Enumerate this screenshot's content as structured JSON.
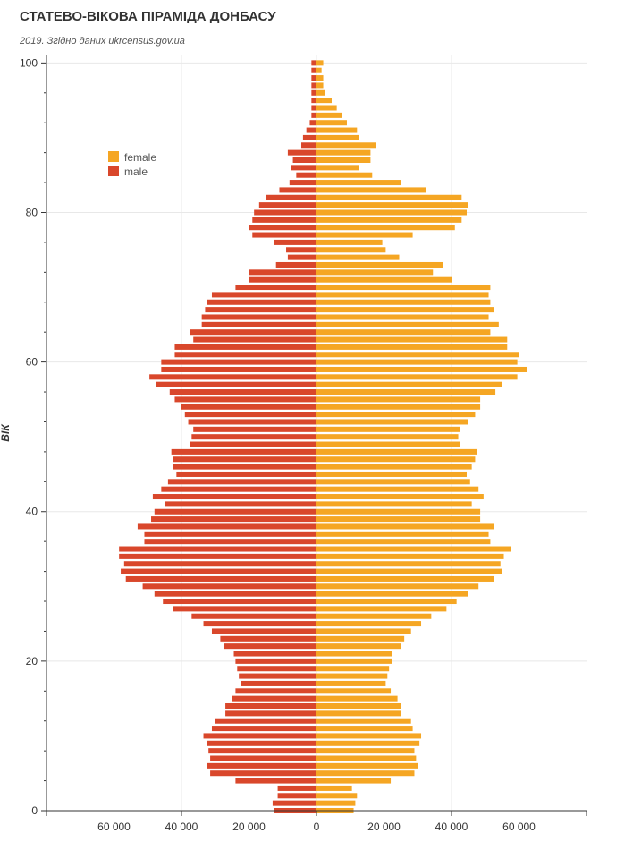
{
  "chart_data": {
    "type": "bar",
    "orientation": "horizontal",
    "title": "СТАТЕВО-ВІКОВА ПІРАМІДА ДОНБАСУ",
    "subtitle": "2019. Згідно даних ukrcensus.gov.ua",
    "ylabel": "ВІК",
    "xlabel": "",
    "xlim": [
      -80000,
      80000
    ],
    "ylim": [
      0,
      101
    ],
    "x_tick_values": [
      -60000,
      -40000,
      -20000,
      0,
      20000,
      40000,
      60000
    ],
    "x_tick_labels": [
      "60 000",
      "40 000",
      "20 000",
      "0",
      "20 000",
      "40 000",
      "60 000"
    ],
    "x_minor_ticks": [
      -80000,
      80000
    ],
    "y_ticks": [
      0,
      20,
      40,
      60,
      80,
      100
    ],
    "grid": true,
    "legend_position": "top-left",
    "colors": {
      "female": "#f5a623",
      "male": "#d9472b",
      "grid": "#e8e8e8",
      "axis": "#333333"
    },
    "ages": [
      0,
      1,
      2,
      3,
      4,
      5,
      6,
      7,
      8,
      9,
      10,
      11,
      12,
      13,
      14,
      15,
      16,
      17,
      18,
      19,
      20,
      21,
      22,
      23,
      24,
      25,
      26,
      27,
      28,
      29,
      30,
      31,
      32,
      33,
      34,
      35,
      36,
      37,
      38,
      39,
      40,
      41,
      42,
      43,
      44,
      45,
      46,
      47,
      48,
      49,
      50,
      51,
      52,
      53,
      54,
      55,
      56,
      57,
      58,
      59,
      60,
      61,
      62,
      63,
      64,
      65,
      66,
      67,
      68,
      69,
      70,
      71,
      72,
      73,
      74,
      75,
      76,
      77,
      78,
      79,
      80,
      81,
      82,
      83,
      84,
      85,
      86,
      87,
      88,
      89,
      90,
      91,
      92,
      93,
      94,
      95,
      96,
      97,
      98,
      99,
      100
    ],
    "series": [
      {
        "name": "female",
        "values": [
          11000,
          11500,
          12000,
          10500,
          22000,
          29000,
          30000,
          29500,
          29000,
          30500,
          31000,
          28500,
          28000,
          25000,
          25000,
          24000,
          22000,
          20500,
          21000,
          21500,
          22500,
          22500,
          25000,
          26000,
          28000,
          31000,
          34000,
          38500,
          41500,
          45000,
          48000,
          52500,
          55000,
          54500,
          55500,
          57500,
          51500,
          51000,
          52500,
          48500,
          48500,
          46000,
          49500,
          48000,
          45500,
          44500,
          46000,
          47000,
          47500,
          42500,
          42000,
          42500,
          45000,
          47000,
          48500,
          48500,
          53000,
          55000,
          59500,
          62500,
          59500,
          60000,
          56500,
          56500,
          51500,
          54000,
          51000,
          52500,
          51500,
          51000,
          51500,
          40000,
          34500,
          37500,
          24500,
          20500,
          19500,
          28500,
          41000,
          43000,
          44500,
          45000,
          43000,
          32500,
          25000,
          16500,
          12500,
          16000,
          16000,
          17500,
          12500,
          12000,
          9000,
          7500,
          6000,
          4500,
          2500,
          2000,
          2000,
          1500,
          2000
        ]
      },
      {
        "name": "male",
        "values": [
          12500,
          13000,
          11500,
          11500,
          24000,
          31500,
          32500,
          31500,
          32000,
          32500,
          33500,
          31000,
          30000,
          27000,
          27000,
          25000,
          24000,
          22500,
          23000,
          23500,
          24000,
          24500,
          27500,
          28500,
          31000,
          33500,
          37000,
          42500,
          45500,
          48000,
          51500,
          56500,
          58000,
          57000,
          58500,
          58500,
          51000,
          51000,
          53000,
          49000,
          48000,
          45000,
          48500,
          46000,
          44000,
          41500,
          42500,
          42500,
          43000,
          37500,
          37000,
          36500,
          38000,
          39000,
          40000,
          42000,
          43500,
          47500,
          49500,
          46000,
          46000,
          42000,
          42000,
          36500,
          37500,
          34000,
          34000,
          33000,
          32500,
          31000,
          24000,
          20000,
          20000,
          12000,
          8500,
          9000,
          12500,
          19000,
          20000,
          19000,
          18500,
          17000,
          15000,
          11000,
          8000,
          6000,
          7500,
          7000,
          8500,
          4500,
          4000,
          3000,
          2000,
          1500,
          1500,
          1500,
          1500,
          1500,
          1500,
          1500,
          1500
        ]
      }
    ]
  }
}
